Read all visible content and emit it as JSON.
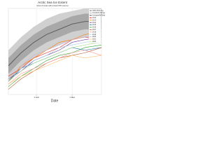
{
  "chart_data": {
    "type": "line",
    "title": "Arctic Sea Ice Extent",
    "subtitle": "(Area of ocean with at least 15% sea ice)",
    "xlabel": "Date",
    "x": [
      10,
      20,
      30,
      40,
      50,
      60,
      70,
      83
    ],
    "xlim": [
      10,
      83
    ],
    "xticks": [
      {
        "value": 32,
        "label": "1 Feb"
      },
      {
        "value": 60,
        "label": "1 Mar"
      }
    ],
    "ylim": [
      12.5,
      15.8
    ],
    "grid": true,
    "legend": "upper right",
    "bands": [
      {
        "name": "Interdecile Range",
        "color": "#d0d0d0",
        "low": [
          13.0,
          13.5,
          13.9,
          14.2,
          14.4,
          14.6,
          14.7,
          14.7
        ],
        "high": [
          14.2,
          14.7,
          15.1,
          15.4,
          15.6,
          15.7,
          15.8,
          15.8
        ]
      },
      {
        "name": "Interquartile Range",
        "color": "#a8a8a8",
        "low": [
          13.3,
          13.8,
          14.2,
          14.5,
          14.7,
          14.9,
          15.0,
          15.0
        ],
        "high": [
          13.9,
          14.4,
          14.8,
          15.1,
          15.3,
          15.5,
          15.6,
          15.6
        ]
      }
    ],
    "series": [
      {
        "name": "1981-2010 Avg",
        "color": "#555555",
        "values": [
          13.6,
          14.1,
          14.5,
          14.8,
          15.0,
          15.2,
          15.3,
          15.3
        ]
      },
      {
        "name": "2012",
        "color": "#e31a1c",
        "values": [
          13.2,
          13.5,
          13.9,
          14.1,
          14.3,
          14.6,
          14.7,
          14.6
        ]
      },
      {
        "name": "2013",
        "color": "#ff7f00",
        "values": [
          13.0,
          13.6,
          13.9,
          14.2,
          14.5,
          14.6,
          14.8,
          14.9
        ]
      },
      {
        "name": "2014",
        "color": "#6a3d9a",
        "values": [
          13.1,
          13.4,
          13.8,
          14.0,
          14.2,
          14.5,
          14.6,
          14.7
        ]
      },
      {
        "name": "2015",
        "color": "#1f78b4",
        "values": [
          13.0,
          13.5,
          13.7,
          13.9,
          14.1,
          14.3,
          14.2,
          14.3
        ]
      },
      {
        "name": "2016",
        "color": "#33a02c",
        "values": [
          12.8,
          13.2,
          13.5,
          13.8,
          14.0,
          14.1,
          14.3,
          14.4
        ]
      },
      {
        "name": "2017",
        "color": "#b15928",
        "values": [
          12.7,
          13.1,
          13.4,
          13.7,
          13.9,
          14.0,
          14.1,
          14.3
        ]
      },
      {
        "name": "2018",
        "color": "#fb9a99",
        "values": [
          12.9,
          13.3,
          13.5,
          13.7,
          13.9,
          14.1,
          14.2,
          14.0
        ]
      },
      {
        "name": "2019",
        "color": "#a6cee3",
        "values": [
          13.1,
          13.5,
          13.8,
          14.0,
          14.3,
          14.4,
          14.5,
          14.6
        ]
      },
      {
        "name": "2020",
        "color": "#cab2d6",
        "values": [
          13.3,
          13.6,
          14.0,
          14.2,
          14.4,
          14.6,
          14.7,
          14.8
        ]
      },
      {
        "name": "2021",
        "color": "#fdbf6f",
        "values": [
          12.9,
          13.2,
          13.4,
          13.6,
          13.8,
          14.0,
          13.9,
          14.0
        ]
      },
      {
        "name": "2022",
        "color": "#b2df8a",
        "values": [
          13.0,
          13.4,
          13.7,
          13.9,
          14.1,
          14.3,
          14.4,
          14.5
        ]
      }
    ]
  }
}
